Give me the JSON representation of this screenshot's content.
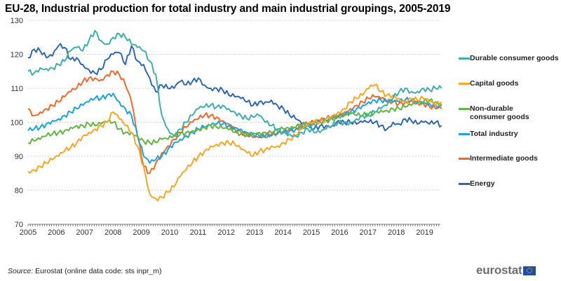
{
  "title": "EU-28, Industrial production for total industry and main industrial groupings, 2005-2019",
  "source_prefix": "Source:",
  "source_text": " Eurostat (online data code: sts inpr_m)",
  "logo_text": "eurostat",
  "chart_data": {
    "type": "line",
    "title": "EU-28, Industrial production for total industry and main industrial groupings, 2005-2019",
    "xlabel": "",
    "ylabel": "",
    "ylim": [
      70,
      130
    ],
    "yticks": [
      70,
      80,
      90,
      100,
      110,
      120,
      130
    ],
    "xticks": [
      "2005",
      "2006",
      "2007",
      "2008",
      "2009",
      "2010",
      "2011",
      "2012",
      "2013",
      "2014",
      "2015",
      "2016",
      "2017",
      "2018",
      "2019"
    ],
    "x_start": 2005.0,
    "x_step_years": 0.25,
    "x_end": 2019.6,
    "grid": true,
    "legend_position": "right",
    "series": [
      {
        "name": "Durable consumer goods",
        "color": "#3cb0aa",
        "values": [
          115,
          114.5,
          116,
          115.8,
          116,
          117,
          118,
          121,
          122,
          121,
          124,
          127,
          124,
          123,
          125,
          126,
          125,
          123,
          122,
          121,
          118,
          114,
          102,
          98,
          96,
          98,
          100,
          102,
          104,
          104.5,
          105,
          104.5,
          105,
          104,
          103,
          102,
          101,
          101.5,
          102,
          100,
          99,
          98,
          97,
          96.5,
          96,
          97,
          98,
          97,
          97,
          98,
          99,
          100,
          100,
          100,
          101,
          102,
          102,
          103,
          104,
          105,
          107,
          109,
          110,
          109,
          109,
          110,
          109.5,
          110,
          110
        ]
      },
      {
        "name": "Capital goods",
        "color": "#f5a623",
        "values": [
          85.5,
          86,
          87,
          88,
          89,
          90,
          91.5,
          92.5,
          94,
          96,
          97,
          98,
          99,
          100,
          103,
          101,
          99,
          97,
          93,
          87,
          79,
          77.5,
          78,
          79.5,
          81,
          84,
          86,
          88,
          90,
          91.5,
          93,
          93.5,
          94,
          94,
          93.5,
          92,
          91,
          90,
          91.5,
          92,
          93,
          93,
          94,
          95,
          96,
          98,
          99,
          100,
          100,
          101,
          102,
          103,
          104,
          106,
          107,
          108,
          110,
          111,
          109,
          108,
          108,
          107,
          106,
          107,
          106.5,
          107,
          106,
          105,
          106
        ]
      },
      {
        "name": "Non-durable consumer goods",
        "color": "#62b541",
        "values": [
          94,
          94.5,
          95,
          96,
          96.5,
          97,
          97.5,
          98.5,
          99,
          99,
          99.5,
          99,
          99.5,
          100,
          100,
          98,
          97,
          97,
          96,
          94.5,
          94,
          94,
          95,
          95,
          96,
          96.5,
          97,
          97.5,
          98,
          98.5,
          99,
          98.5,
          98.2,
          97.8,
          97,
          96.5,
          96.5,
          96.8,
          97,
          97,
          97,
          97.5,
          98,
          98,
          98.5,
          99,
          99.5,
          100,
          100,
          100.5,
          101,
          101.5,
          102,
          102.5,
          102,
          102,
          102.5,
          103,
          103.5,
          103.5,
          104,
          104,
          104.5,
          105,
          105.5,
          106,
          106.5,
          106,
          105
        ]
      },
      {
        "name": "Total industry",
        "color": "#1ca3de",
        "values": [
          97.5,
          98,
          98.5,
          99.5,
          100.5,
          101,
          102,
          103,
          104,
          105,
          106,
          107,
          107,
          108,
          108.5,
          106,
          104,
          102,
          96,
          90,
          88,
          89,
          90,
          92,
          94,
          95,
          96,
          97,
          98,
          98.5,
          99,
          99.5,
          99.5,
          99,
          98.5,
          98,
          97,
          96.5,
          96,
          95.5,
          96,
          96.5,
          97,
          97.5,
          98,
          98.5,
          99,
          99.5,
          100,
          100.5,
          101,
          101.5,
          102,
          103,
          104,
          105,
          106,
          106.5,
          106.5,
          106,
          106,
          106,
          106.5,
          106.5,
          106,
          106,
          105.5,
          105,
          105
        ]
      },
      {
        "name": "Intermediate goods",
        "color": "#ee6a2b",
        "values": [
          104,
          102,
          103,
          104,
          105,
          106,
          107.5,
          109,
          110,
          112,
          113,
          113,
          112.5,
          114,
          115,
          114,
          111,
          106,
          96,
          87,
          85,
          88,
          91,
          93,
          95,
          97,
          98.5,
          100,
          101,
          102,
          102,
          101.5,
          100.5,
          99.5,
          98,
          97,
          96,
          95.5,
          95.5,
          96,
          96.5,
          97,
          97.5,
          98,
          98.5,
          99,
          99.5,
          100,
          100.5,
          101,
          101.5,
          102,
          103,
          104,
          105,
          106,
          107,
          107.5,
          107,
          106,
          106,
          105.5,
          106,
          106.5,
          106,
          105.5,
          104.5,
          104,
          104
        ]
      },
      {
        "name": "Energy",
        "color": "#2e68b3",
        "values": [
          119,
          121.5,
          121,
          119,
          119.5,
          122.5,
          122,
          118.5,
          119,
          117,
          115.5,
          114.5,
          115.5,
          118.5,
          120,
          120.5,
          117,
          122.5,
          118,
          117,
          113,
          109,
          111,
          110,
          110,
          112,
          111,
          112,
          113,
          111,
          110,
          110,
          109.5,
          108,
          107.5,
          107,
          106,
          105,
          106,
          106,
          106.5,
          105,
          104,
          102,
          101,
          99.5,
          99,
          98,
          99,
          99,
          99,
          100.5,
          100,
          100,
          99.5,
          100,
          100,
          100,
          99,
          98,
          100,
          99.5,
          101,
          100.5,
          99.5,
          100,
          99.5,
          100,
          99
        ]
      }
    ]
  },
  "legend": [
    {
      "label": "Durable consumer goods",
      "color": "#3cb0aa"
    },
    {
      "label": "Capital goods",
      "color": "#f5a623"
    },
    {
      "label": "Non-durable consumer goods",
      "color": "#62b541"
    },
    {
      "label": "Total industry",
      "color": "#1ca3de"
    },
    {
      "label": "Intermediate goods",
      "color": "#ee6a2b"
    },
    {
      "label": "Energy",
      "color": "#2e68b3"
    }
  ]
}
